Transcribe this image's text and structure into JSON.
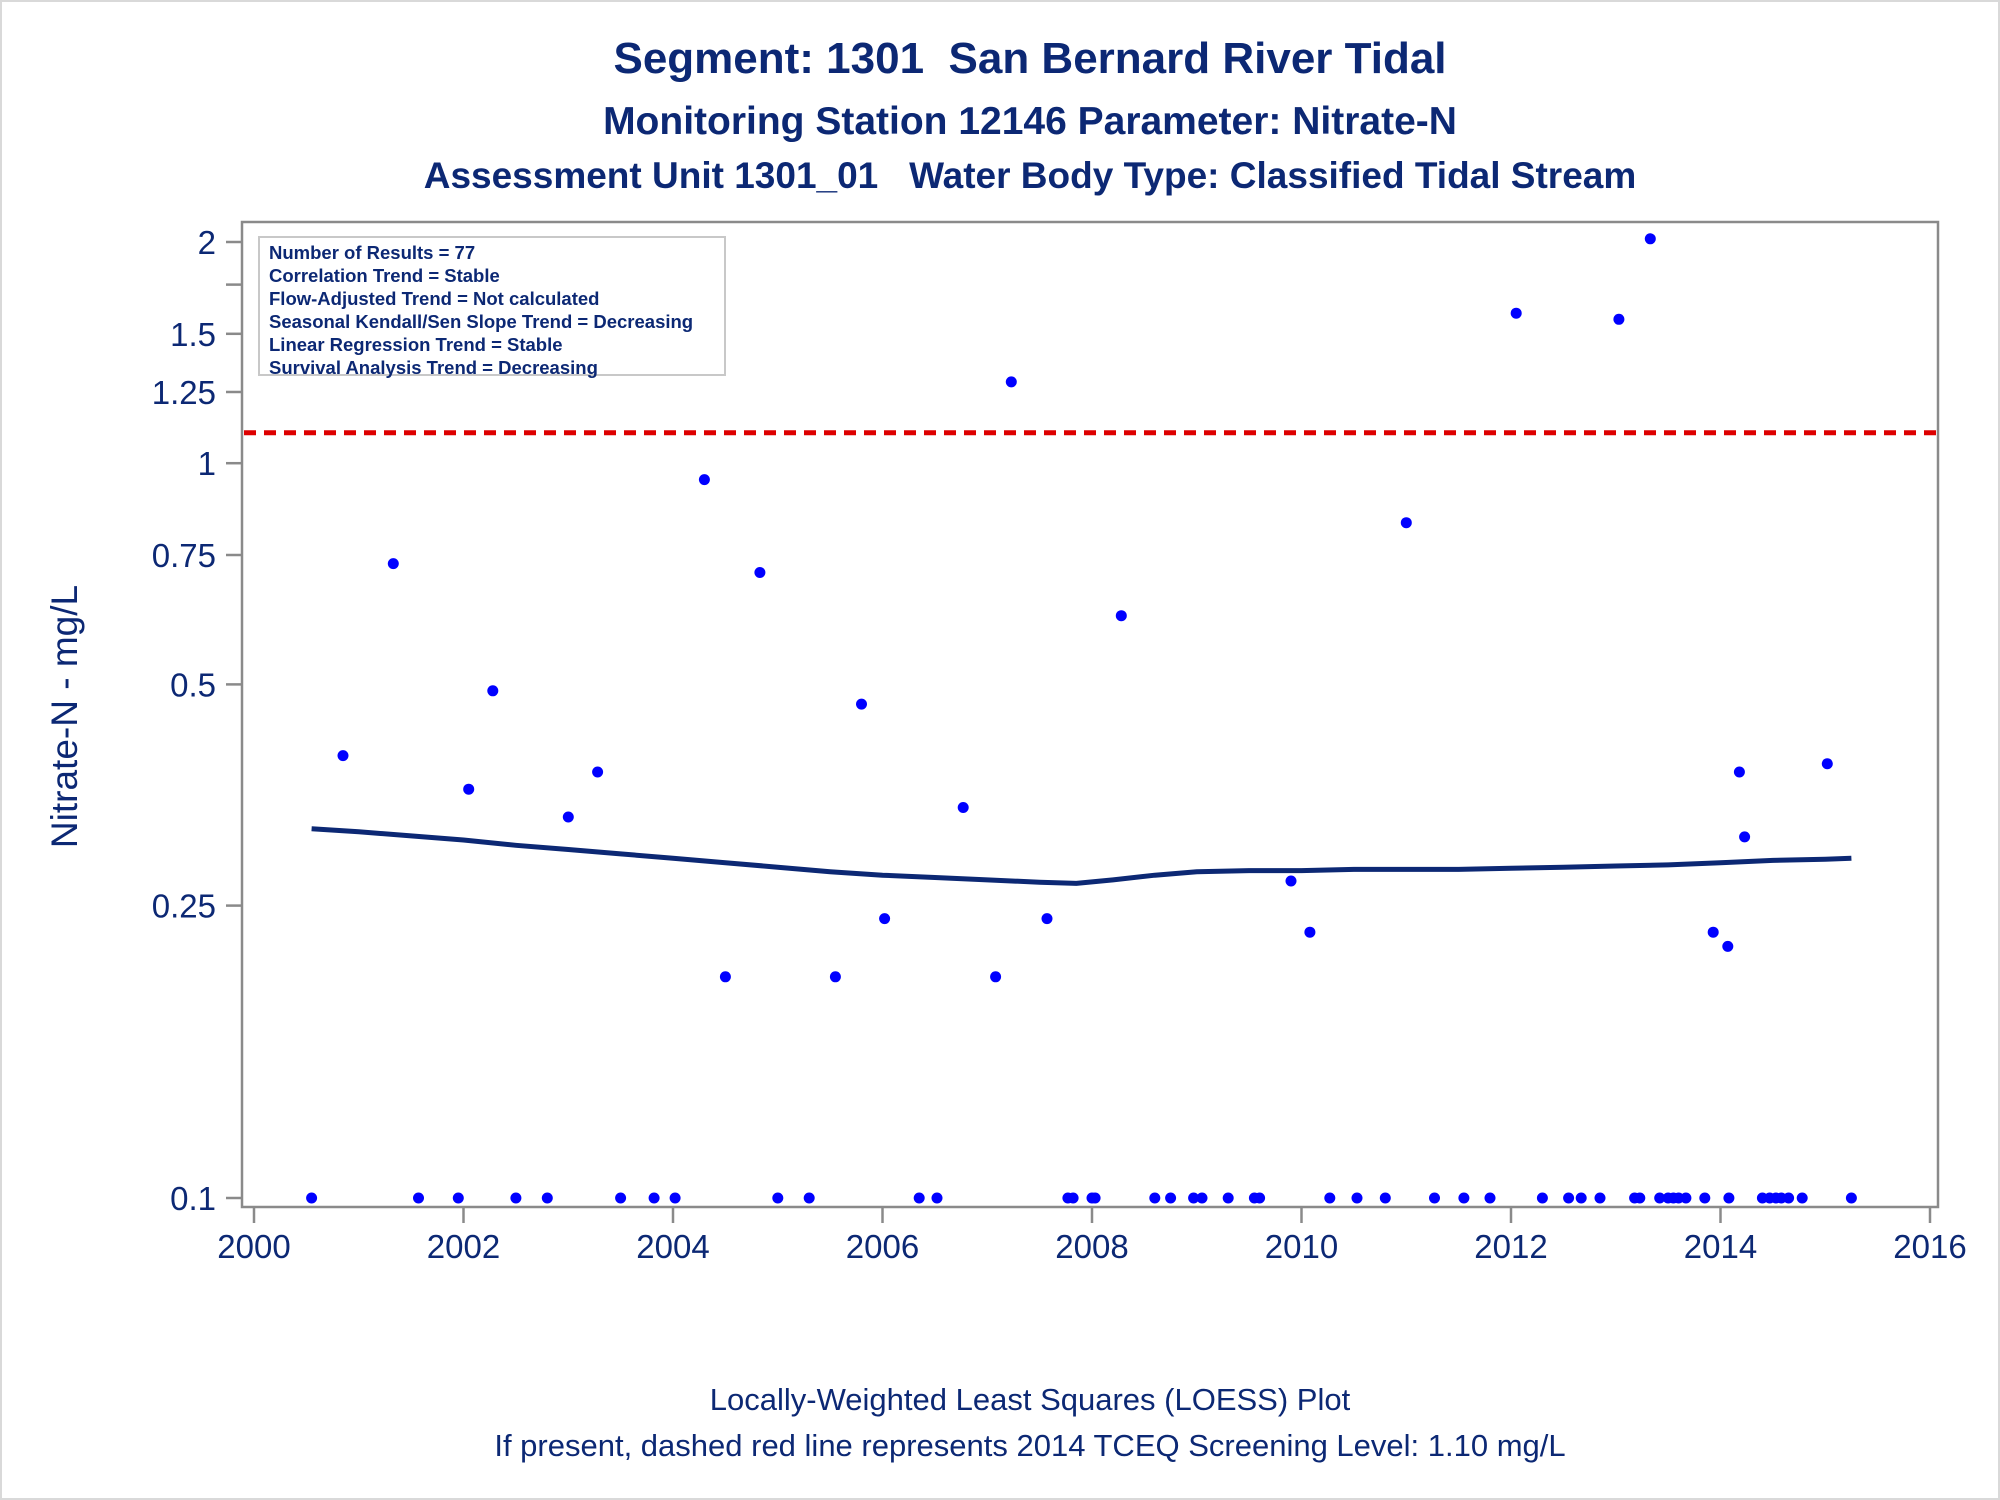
{
  "titles": {
    "line1": "Segment: 1301  San Bernard River Tidal",
    "line2": "Monitoring Station 12146 Parameter: Nitrate-N",
    "line3": "Assessment Unit 1301_01   Water Body Type: Classified Tidal Stream"
  },
  "footnotes": {
    "line1": "Locally-Weighted Least Squares (LOESS) Plot",
    "line2": "If present, dashed red line represents 2014 TCEQ Screening Level: 1.10 mg/L"
  },
  "stats_box": [
    "Number of Results = 77",
    "Correlation Trend = Stable",
    "Flow-Adjusted Trend = Not calculated",
    "Seasonal Kendall/Sen Slope Trend = Decreasing",
    "Linear Regression Trend = Stable",
    "Survival Analysis Trend = Decreasing"
  ],
  "colors": {
    "text": "#0c2874",
    "points": "#0000ff",
    "loess": "#0c2874",
    "screening": "#dd0000",
    "axis": "#8a8a8a"
  },
  "chart_data": {
    "type": "scatter",
    "ylabel": "Nitrate-N - mg/L",
    "xlabel": "",
    "yscale": "log",
    "xlim": [
      2000,
      2016
    ],
    "ylim": [
      0.1,
      2
    ],
    "x_ticks": [
      2000,
      2002,
      2004,
      2006,
      2008,
      2010,
      2012,
      2014,
      2016
    ],
    "y_ticks": [
      0.1,
      0.25,
      0.5,
      0.75,
      1,
      1.25,
      1.5,
      2
    ],
    "y_tick_labels": [
      "0.1",
      "0.25",
      "0.5",
      "0.75",
      "1",
      "1.25",
      "1.5",
      "2"
    ],
    "y_minor_ticks": [
      1.75
    ],
    "screening_level": 1.1,
    "grid": false,
    "series": [
      {
        "type": "scatter",
        "x": [
          2000.55,
          2000.85,
          2001.33,
          2001.57,
          2001.95,
          2002.05,
          2002.28,
          2002.5,
          2002.8,
          2003.0,
          2003.28,
          2003.5,
          2003.82,
          2004.02,
          2004.3,
          2004.5,
          2004.83,
          2005.0,
          2005.3,
          2005.55,
          2005.8,
          2006.02,
          2006.35,
          2006.52,
          2006.77,
          2007.08,
          2007.23,
          2007.57,
          2007.77,
          2007.82,
          2008.0,
          2008.03,
          2008.28,
          2008.6,
          2008.75,
          2008.97,
          2009.05,
          2009.3,
          2009.55,
          2009.6,
          2009.9,
          2010.08,
          2010.27,
          2010.53,
          2010.8,
          2011.0,
          2011.27,
          2011.55,
          2011.8,
          2012.05,
          2012.3,
          2012.55,
          2012.67,
          2012.85,
          2013.03,
          2013.18,
          2013.23,
          2013.33,
          2013.42,
          2013.5,
          2013.55,
          2013.6,
          2013.67,
          2013.85,
          2013.93,
          2014.07,
          2014.08,
          2014.18,
          2014.23,
          2014.4,
          2014.47,
          2014.53,
          2014.58,
          2014.65,
          2014.78,
          2015.02,
          2015.25
        ],
        "y": [
          0.1,
          0.4,
          0.73,
          0.1,
          0.1,
          0.36,
          0.49,
          0.1,
          0.1,
          0.33,
          0.38,
          0.1,
          0.1,
          0.1,
          0.95,
          0.2,
          0.71,
          0.1,
          0.1,
          0.2,
          0.47,
          0.24,
          0.1,
          0.1,
          0.34,
          0.2,
          1.29,
          0.24,
          0.1,
          0.1,
          0.1,
          0.1,
          0.62,
          0.1,
          0.1,
          0.1,
          0.1,
          0.1,
          0.1,
          0.1,
          0.27,
          0.23,
          0.1,
          0.1,
          0.1,
          0.83,
          0.1,
          0.1,
          0.1,
          1.6,
          0.1,
          0.1,
          0.1,
          0.1,
          1.57,
          0.1,
          0.1,
          2.02,
          0.1,
          0.1,
          0.1,
          0.1,
          0.1,
          0.1,
          0.23,
          0.22,
          0.1,
          0.38,
          0.31,
          0.1,
          0.1,
          0.1,
          0.1,
          0.1,
          0.1,
          0.39,
          0.1
        ]
      },
      {
        "type": "line",
        "x": [
          2000.55,
          2001.0,
          2001.5,
          2002.0,
          2002.5,
          2003.0,
          2003.5,
          2004.0,
          2004.5,
          2005.0,
          2005.5,
          2006.0,
          2006.5,
          2007.0,
          2007.5,
          2007.85,
          2008.2,
          2008.6,
          2009.0,
          2009.5,
          2010.0,
          2010.5,
          2011.0,
          2011.5,
          2012.0,
          2012.5,
          2013.0,
          2013.5,
          2014.0,
          2014.5,
          2015.0,
          2015.25
        ],
        "y": [
          0.318,
          0.315,
          0.311,
          0.307,
          0.302,
          0.298,
          0.294,
          0.29,
          0.286,
          0.282,
          0.278,
          0.275,
          0.273,
          0.271,
          0.269,
          0.268,
          0.271,
          0.275,
          0.278,
          0.279,
          0.279,
          0.28,
          0.28,
          0.28,
          0.281,
          0.282,
          0.283,
          0.284,
          0.286,
          0.288,
          0.289,
          0.29
        ]
      }
    ]
  }
}
